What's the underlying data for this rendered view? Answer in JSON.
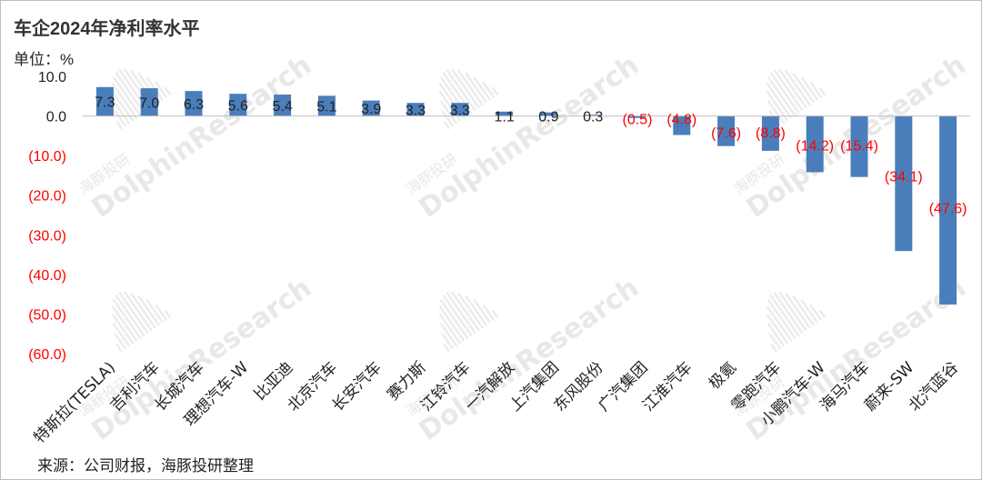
{
  "title": "车企2024年净利率水平",
  "unit_label": "单位：%",
  "source": "来源：公司财报，海豚投研整理",
  "watermark": {
    "cn": "海豚投研",
    "en": "DolphinResearch"
  },
  "colors": {
    "bar": "#4a7ebb",
    "positive_label": "#222222",
    "negative_label": "#ff0000"
  },
  "chart_data": {
    "type": "bar",
    "categories": [
      "特斯拉(TESLA)",
      "吉利汽车",
      "长城汽车",
      "理想汽车-W",
      "比亚迪",
      "北京汽车",
      "长安汽车",
      "赛力斯",
      "江铃汽车",
      "一汽解放",
      "上汽集团",
      "东风股份",
      "广汽集团",
      "江淮汽车",
      "极氪",
      "零跑汽车",
      "小鹏汽车-W",
      "海马汽车",
      "蔚来-SW",
      "北汽蓝谷"
    ],
    "values": [
      7.3,
      7.0,
      6.3,
      5.6,
      5.4,
      5.1,
      3.9,
      3.3,
      3.3,
      1.1,
      0.9,
      0.3,
      -0.5,
      -4.8,
      -7.6,
      -8.8,
      -14.2,
      -15.4,
      -34.1,
      -47.6
    ],
    "value_labels": [
      "7.3",
      "7.0",
      "6.3",
      "5.6",
      "5.4",
      "5.1",
      "3.9",
      "3.3",
      "3.3",
      "1.1",
      "0.9",
      "0.3",
      "(0.5)",
      "(4.8)",
      "(7.6)",
      "(8.8)",
      "(14.2)",
      "(15.4)",
      "(34.1)",
      "(47.6)"
    ],
    "ylim": [
      -60,
      10
    ],
    "yticks": [
      10,
      0,
      -10,
      -20,
      -30,
      -40,
      -50,
      -60
    ],
    "ytick_labels": [
      "10.0",
      "0.0",
      "(10.0)",
      "(20.0)",
      "(30.0)",
      "(40.0)",
      "(50.0)",
      "(60.0)"
    ],
    "grid": false,
    "legend": "none"
  }
}
